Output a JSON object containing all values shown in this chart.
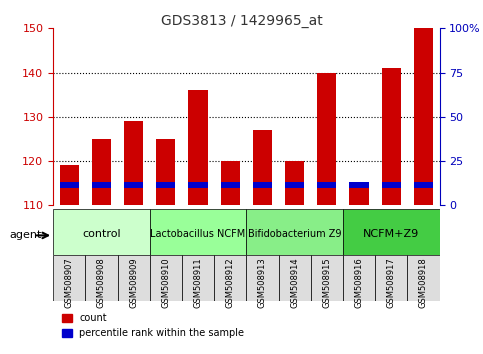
{
  "title": "GDS3813 / 1429965_at",
  "samples": [
    "GSM508907",
    "GSM508908",
    "GSM508909",
    "GSM508910",
    "GSM508911",
    "GSM508912",
    "GSM508913",
    "GSM508914",
    "GSM508915",
    "GSM508916",
    "GSM508917",
    "GSM508918"
  ],
  "counts": [
    119,
    125,
    129,
    125,
    136,
    120,
    127,
    120,
    140,
    115,
    141,
    150
  ],
  "percentiles": [
    14,
    16,
    16,
    14,
    18,
    14,
    16,
    14,
    17,
    14,
    18,
    18
  ],
  "ymin": 110,
  "ymax": 150,
  "yticks_left": [
    110,
    120,
    130,
    140,
    150
  ],
  "yticks_right": [
    0,
    25,
    50,
    75,
    100
  ],
  "bar_color": "#CC0000",
  "percentile_color": "#0000CC",
  "bar_width": 0.6,
  "groups": [
    {
      "label": "control",
      "start": 0,
      "end": 3,
      "color": "#CCFFCC"
    },
    {
      "label": "Lactobacillus NCFM",
      "start": 3,
      "end": 6,
      "color": "#99FF99"
    },
    {
      "label": "Bifidobacterium Z9",
      "start": 6,
      "end": 9,
      "color": "#88EE88"
    },
    {
      "label": "NCFM+Z9",
      "start": 9,
      "end": 12,
      "color": "#44CC44"
    }
  ],
  "agent_label": "agent",
  "legend_count_label": "count",
  "legend_percentile_label": "percentile rank within the sample",
  "bg_color": "#FFFFFF",
  "plot_bg_color": "#FFFFFF",
  "tick_label_color_left": "#CC0000",
  "tick_label_color_right": "#0000BB",
  "title_color": "#333333"
}
